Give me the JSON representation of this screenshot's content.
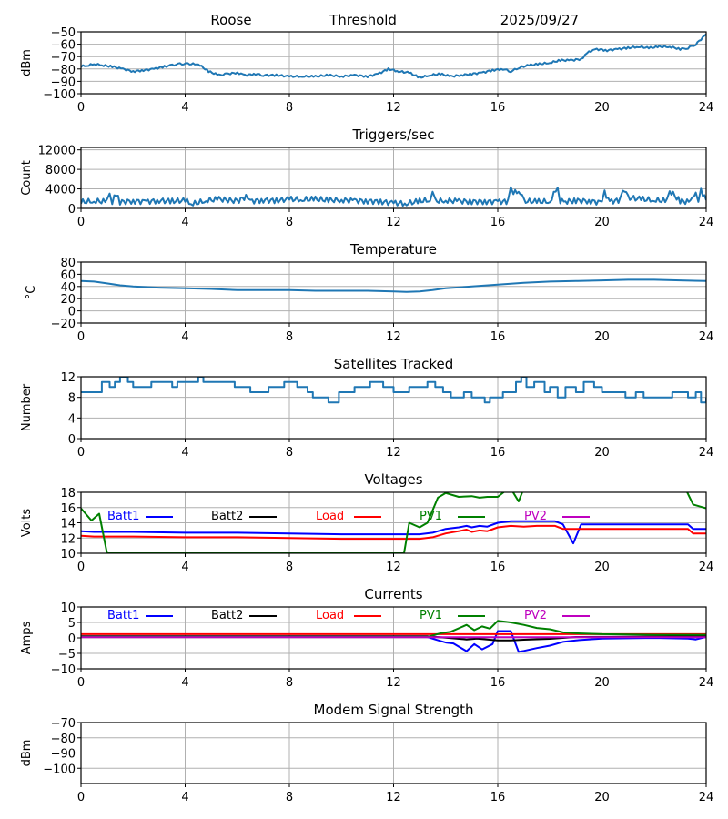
{
  "header": {
    "station": "Roose",
    "mode": "Threshold",
    "date": "2025/09/27"
  },
  "chart_data": [
    {
      "id": "signal",
      "type": "line",
      "title": "",
      "ylabel": "dBm",
      "xlabel": "",
      "xlim": [
        0,
        24
      ],
      "xticks": [
        "0",
        "4",
        "8",
        "12",
        "16",
        "20",
        "24"
      ],
      "ylim": [
        -100,
        -50
      ],
      "yticks": [
        "-100",
        "-90",
        "-80",
        "-70",
        "-60",
        "-50"
      ],
      "grid": true,
      "series": [
        {
          "name": "signal",
          "color": "#1f77b4",
          "x": [
            0,
            0.3,
            0.5,
            0.8,
            1.2,
            1.6,
            2.0,
            2.4,
            2.8,
            3.2,
            3.5,
            3.8,
            4.1,
            4.5,
            4.9,
            5.3,
            5.6,
            6.0,
            6.3,
            6.7,
            7.0,
            7.5,
            8.0,
            8.5,
            9.0,
            9.5,
            10.0,
            10.5,
            11.0,
            11.4,
            11.8,
            12.2,
            12.6,
            13.0,
            13.4,
            13.8,
            14.2,
            14.6,
            15.0,
            15.4,
            15.8,
            16.2,
            16.5,
            16.8,
            17.2,
            17.6,
            18.0,
            18.4,
            18.8,
            19.2,
            19.5,
            19.8,
            20.2,
            20.6,
            21.0,
            21.4,
            21.8,
            22.2,
            22.6,
            23.0,
            23.3,
            23.6,
            24.0
          ],
          "y": [
            -78,
            -77,
            -76,
            -77,
            -78,
            -80,
            -82,
            -81,
            -80,
            -78,
            -77,
            -76,
            -76,
            -76,
            -82,
            -85,
            -84,
            -83,
            -85,
            -84,
            -85,
            -85,
            -86,
            -86,
            -86,
            -85,
            -86,
            -85,
            -86,
            -84,
            -80,
            -82,
            -83,
            -87,
            -85,
            -84,
            -86,
            -85,
            -84,
            -83,
            -81,
            -80,
            -82,
            -79,
            -77,
            -76,
            -75,
            -73,
            -73,
            -72,
            -66,
            -64,
            -65,
            -64,
            -63,
            -62,
            -63,
            -62,
            -62,
            -64,
            -63,
            -60,
            -52
          ]
        }
      ]
    },
    {
      "id": "triggers",
      "type": "line",
      "title": "Triggers/sec",
      "ylabel": "Count",
      "xlim": [
        0,
        24
      ],
      "xticks": [
        "0",
        "4",
        "8",
        "12",
        "16",
        "20",
        "24"
      ],
      "ylim": [
        0,
        12500
      ],
      "yticks": [
        "0",
        "4000",
        "8000",
        "12000"
      ],
      "grid": true,
      "series": [
        {
          "name": "triggers",
          "color": "#1f77b4",
          "x": [
            0,
            0.5,
            1.0,
            1.1,
            1.2,
            1.35,
            1.5,
            2.0,
            2.5,
            3.0,
            3.5,
            4.0,
            4.3,
            4.8,
            5.3,
            6.0,
            6.4,
            6.5,
            7.0,
            7.5,
            8.0,
            8.5,
            9.0,
            9.5,
            10.0,
            10.5,
            11.0,
            11.5,
            12.0,
            12.5,
            13.0,
            13.4,
            13.5,
            13.6,
            14.0,
            14.5,
            15.0,
            15.5,
            16.0,
            16.4,
            16.5,
            16.6,
            16.8,
            17.0,
            17.5,
            18.0,
            18.3,
            18.4,
            18.6,
            19.0,
            19.5,
            20.0,
            20.1,
            20.3,
            20.7,
            20.8,
            21.0,
            21.5,
            22.0,
            22.5,
            22.6,
            23.0,
            23.4,
            23.6,
            23.7,
            23.8,
            24.0
          ],
          "y": [
            1300,
            1500,
            1400,
            3000,
            1400,
            3100,
            1300,
            1500,
            1400,
            1600,
            1500,
            1600,
            900,
            1600,
            1900,
            1500,
            2600,
            1500,
            1700,
            1600,
            1900,
            1800,
            1900,
            1700,
            1700,
            1600,
            1500,
            1400,
            1100,
            1000,
            1500,
            1700,
            3800,
            1500,
            1600,
            1500,
            1400,
            1400,
            1400,
            1400,
            4800,
            3000,
            3800,
            1500,
            1400,
            1400,
            4300,
            1500,
            1400,
            1600,
            1500,
            1200,
            3300,
            1400,
            1700,
            4100,
            2200,
            1900,
            1700,
            1500,
            3600,
            1500,
            1300,
            3800,
            1000,
            3800,
            1700
          ]
        }
      ]
    },
    {
      "id": "temperature",
      "type": "line",
      "title": "Temperature",
      "ylabel": "°C",
      "xlim": [
        0,
        24
      ],
      "xticks": [
        "0",
        "4",
        "8",
        "12",
        "16",
        "20",
        "24"
      ],
      "ylim": [
        -20,
        80
      ],
      "yticks": [
        "-20",
        "0",
        "20",
        "40",
        "60",
        "80"
      ],
      "grid": true,
      "series": [
        {
          "name": "temperature",
          "color": "#1f77b4",
          "x": [
            0,
            0.5,
            1,
            1.5,
            2,
            3,
            4,
            5,
            6,
            7,
            8,
            9,
            10,
            11,
            12,
            12.5,
            13,
            13.5,
            14,
            15,
            16,
            17,
            18,
            19,
            20,
            21,
            22,
            23,
            24
          ],
          "y": [
            49,
            48,
            45,
            42,
            40,
            38,
            37,
            36,
            34,
            34,
            34,
            33,
            33,
            33,
            32,
            31,
            32,
            34,
            37,
            40,
            43,
            46,
            48,
            49,
            50,
            51,
            51,
            50,
            49
          ]
        }
      ]
    },
    {
      "id": "satellites",
      "type": "line",
      "title": "Satellites Tracked",
      "ylabel": "Number",
      "xlim": [
        0,
        24
      ],
      "xticks": [
        "0",
        "4",
        "8",
        "12",
        "16",
        "20",
        "24"
      ],
      "ylim": [
        0,
        12
      ],
      "yticks": [
        "0",
        "4",
        "8",
        "12"
      ],
      "grid": true,
      "series": [
        {
          "name": "satellites",
          "color": "#1f77b4",
          "step": true,
          "x": [
            0,
            0.5,
            0.8,
            1.1,
            1.3,
            1.5,
            1.8,
            2.0,
            2.7,
            3.0,
            3.5,
            3.7,
            4.2,
            4.5,
            4.7,
            5.0,
            5.7,
            5.9,
            6.5,
            7.2,
            7.4,
            7.8,
            8.3,
            8.5,
            8.7,
            8.9,
            9.5,
            9.9,
            10.2,
            10.5,
            10.8,
            11.1,
            11.3,
            11.6,
            12.0,
            12.3,
            12.6,
            13.0,
            13.3,
            13.6,
            13.9,
            14.2,
            14.7,
            15.0,
            15.3,
            15.5,
            15.7,
            16.2,
            16.5,
            16.7,
            16.9,
            17.1,
            17.4,
            17.8,
            18.0,
            18.3,
            18.6,
            19.0,
            19.3,
            19.7,
            20.0,
            20.5,
            20.9,
            21.3,
            21.6,
            22.0,
            22.7,
            23.0,
            23.3,
            23.6,
            23.8,
            24.0
          ],
          "y": [
            9,
            9,
            11,
            10,
            11,
            12,
            11,
            10,
            11,
            11,
            10,
            11,
            11,
            12,
            11,
            11,
            11,
            10,
            9,
            10,
            10,
            11,
            10,
            10,
            9,
            8,
            7,
            9,
            9,
            10,
            10,
            11,
            11,
            10,
            9,
            9,
            10,
            10,
            11,
            10,
            9,
            8,
            9,
            8,
            8,
            7,
            8,
            9,
            9,
            11,
            12,
            10,
            11,
            9,
            10,
            8,
            10,
            9,
            11,
            10,
            9,
            9,
            8,
            9,
            8,
            8,
            9,
            9,
            8,
            9,
            7,
            8
          ]
        }
      ]
    },
    {
      "id": "voltages",
      "type": "line",
      "title": "Voltages",
      "ylabel": "Volts",
      "xlim": [
        0,
        24
      ],
      "xticks": [
        "0",
        "4",
        "8",
        "12",
        "16",
        "20",
        "24"
      ],
      "ylim": [
        10,
        18
      ],
      "yticks": [
        "10",
        "12",
        "14",
        "16",
        "18"
      ],
      "grid": true,
      "legend": [
        "Batt1",
        "Batt2",
        "Load",
        "PV1",
        "PV2"
      ],
      "series": [
        {
          "name": "Batt1",
          "color": "#0000ff",
          "x": [
            0,
            0.5,
            2,
            4,
            6,
            8,
            10,
            12,
            13,
            13.5,
            14,
            14.5,
            14.8,
            15.0,
            15.3,
            15.6,
            16.0,
            16.5,
            17.0,
            17.5,
            18.2,
            18.5,
            18.9,
            19.2,
            19.5,
            20,
            22,
            23.3,
            23.5,
            24
          ],
          "y": [
            12.9,
            12.8,
            12.8,
            12.7,
            12.7,
            12.6,
            12.5,
            12.5,
            12.5,
            12.7,
            13.2,
            13.4,
            13.6,
            13.4,
            13.6,
            13.5,
            14.0,
            14.2,
            14.2,
            14.2,
            14.2,
            13.8,
            11.3,
            13.8,
            13.8,
            13.8,
            13.8,
            13.8,
            13.2,
            13.2
          ]
        },
        {
          "name": "Load",
          "color": "#ff0000",
          "x": [
            0,
            0.5,
            2,
            4,
            6,
            8,
            10,
            12,
            13,
            13.5,
            14,
            14.5,
            14.8,
            15.0,
            15.3,
            15.6,
            16.0,
            16.5,
            17.0,
            17.5,
            18.2,
            18.5,
            19.2,
            20,
            22,
            23.3,
            23.5,
            24
          ],
          "y": [
            12.3,
            12.2,
            12.2,
            12.1,
            12.1,
            12.0,
            11.9,
            11.9,
            11.9,
            12.1,
            12.6,
            12.9,
            13.1,
            12.8,
            13.0,
            12.9,
            13.4,
            13.6,
            13.5,
            13.6,
            13.6,
            13.2,
            13.2,
            13.2,
            13.2,
            13.2,
            12.6,
            12.6
          ]
        },
        {
          "name": "PV1",
          "color": "#008000",
          "x": [
            0,
            0.4,
            0.7,
            1.0,
            12.4,
            12.6,
            13.0,
            13.3,
            13.7,
            14.0,
            14.5,
            15.0,
            15.3,
            15.6,
            16.0,
            16.3,
            16.5,
            16.8,
            17.0,
            23.2,
            23.5,
            24
          ],
          "y": [
            15.9,
            14.3,
            15.2,
            10.0,
            10.0,
            14.0,
            13.4,
            14.0,
            17.3,
            17.9,
            17.4,
            17.5,
            17.3,
            17.4,
            17.4,
            18.2,
            18.5,
            16.8,
            18.5,
            18.5,
            16.4,
            15.9
          ]
        }
      ]
    },
    {
      "id": "currents",
      "type": "line",
      "title": "Currents",
      "ylabel": "Amps",
      "xlim": [
        0,
        24
      ],
      "xticks": [
        "0",
        "4",
        "8",
        "12",
        "16",
        "20",
        "24"
      ],
      "ylim": [
        -10,
        10
      ],
      "yticks": [
        "-10",
        "-5",
        "0",
        "5",
        "10"
      ],
      "grid": true,
      "legend": [
        "Batt1",
        "Batt2",
        "Load",
        "PV1",
        "PV2"
      ],
      "series": [
        {
          "name": "Batt1",
          "color": "#0000ff",
          "x": [
            0,
            4,
            8,
            12,
            13.3,
            13.6,
            14.0,
            14.3,
            14.8,
            15.1,
            15.4,
            15.8,
            16.0,
            16.5,
            16.8,
            17.0,
            17.5,
            18.0,
            18.5,
            19.0,
            20.0,
            22,
            23.3,
            23.6,
            24
          ],
          "y": [
            0.3,
            0.3,
            0.3,
            0.3,
            0.3,
            -0.5,
            -1.5,
            -1.8,
            -4.3,
            -2.0,
            -3.7,
            -2.0,
            2.2,
            2.2,
            -4.5,
            -4.2,
            -3.3,
            -2.5,
            -1.3,
            -0.8,
            -0.2,
            0.0,
            -0.2,
            -0.5,
            0.3
          ]
        },
        {
          "name": "Batt2",
          "color": "#000000",
          "x": [
            0,
            4,
            8,
            12,
            13.3,
            14.0,
            14.8,
            15.2,
            15.6,
            16.0,
            16.5,
            17.0,
            18.0,
            19.0,
            24
          ],
          "y": [
            0.5,
            0.5,
            0.5,
            0.5,
            0.5,
            0.1,
            -0.5,
            -0.2,
            -0.5,
            -0.8,
            -0.8,
            -0.6,
            -0.3,
            0.3,
            0.5
          ]
        },
        {
          "name": "Load",
          "color": "#ff0000",
          "x": [
            0,
            4,
            8,
            12,
            16,
            20,
            24
          ],
          "y": [
            1.2,
            1.2,
            1.2,
            1.2,
            1.2,
            1.2,
            1.2
          ]
        },
        {
          "name": "PV1",
          "color": "#008000",
          "x": [
            0,
            4,
            8,
            12,
            13.3,
            13.8,
            14.2,
            14.8,
            15.1,
            15.4,
            15.7,
            16.0,
            16.5,
            17.0,
            17.5,
            18.0,
            18.5,
            19.0,
            20.0,
            22,
            23.5,
            24
          ],
          "y": [
            0.3,
            0.3,
            0.3,
            0.3,
            0.3,
            1.5,
            2.0,
            4.2,
            2.5,
            3.7,
            3.0,
            5.5,
            5.0,
            4.2,
            3.2,
            2.8,
            1.8,
            1.5,
            1.2,
            1.0,
            1.0,
            1.0
          ]
        },
        {
          "name": "PV2",
          "color": "#bf00bf",
          "x": [
            0,
            4,
            8,
            12,
            16,
            20,
            24
          ],
          "y": [
            0.2,
            0.2,
            0.2,
            0.2,
            0.2,
            0.2,
            0.2
          ]
        }
      ]
    },
    {
      "id": "modem",
      "type": "line",
      "title": "Modem Signal Strength",
      "ylabel": "dBm",
      "xlim": [
        0,
        24
      ],
      "xticks": [
        "0",
        "4",
        "8",
        "12",
        "16",
        "20",
        "24"
      ],
      "ylim": [
        -110,
        -70
      ],
      "yticks": [
        "-100",
        "-90",
        "-80",
        "-70"
      ],
      "grid": true,
      "series": []
    }
  ],
  "legend_colors": {
    "Batt1": "#0000ff",
    "Batt2": "#000000",
    "Load": "#ff0000",
    "PV1": "#008000",
    "PV2": "#bf00bf"
  }
}
